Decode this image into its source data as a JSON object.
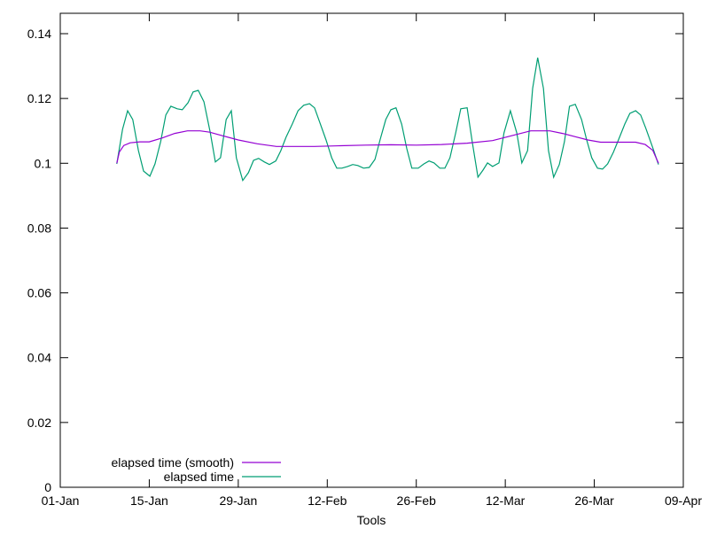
{
  "chart_data": {
    "type": "line",
    "title": "",
    "xlabel": "Tools",
    "ylabel": "",
    "x_units": "days since 01-Jan",
    "xlim": [
      0,
      98
    ],
    "ylim": [
      0,
      0.145
    ],
    "x_ticks": [
      {
        "day": 0,
        "label": "01-Jan"
      },
      {
        "day": 14,
        "label": "15-Jan"
      },
      {
        "day": 28,
        "label": "29-Jan"
      },
      {
        "day": 42,
        "label": "12-Feb"
      },
      {
        "day": 56,
        "label": "26-Feb"
      },
      {
        "day": 70,
        "label": "12-Mar"
      },
      {
        "day": 84,
        "label": "26-Mar"
      },
      {
        "day": 98,
        "label": "09-Apr"
      }
    ],
    "y_ticks": [
      {
        "value": 0,
        "label": "0"
      },
      {
        "value": 0.02,
        "label": "0.02"
      },
      {
        "value": 0.04,
        "label": "0.04"
      },
      {
        "value": 0.06,
        "label": "0.06"
      },
      {
        "value": 0.08,
        "label": "0.08"
      },
      {
        "value": 0.1,
        "label": "0.1"
      },
      {
        "value": 0.12,
        "label": "0.12"
      },
      {
        "value": 0.14,
        "label": "0.14"
      }
    ],
    "grid": false,
    "legend_position": "bottom-left",
    "series": [
      {
        "name": "elapsed time (smooth)",
        "color": "#9400d3",
        "x": [
          8.9,
          9.3,
          10.0,
          11.0,
          12.5,
          14.0,
          16.0,
          18.0,
          20.0,
          22.0,
          23.5,
          25.5,
          28.0,
          31.0,
          34.0,
          37.0,
          40.0,
          44.0,
          48.0,
          52.0,
          56.0,
          60.0,
          64.0,
          68.0,
          71.0,
          74.0,
          77.0,
          79.0,
          81.0,
          83.0,
          85.0,
          88.0,
          90.5,
          92.0,
          93.2,
          94.1
        ],
        "y": [
          0.1,
          0.1035,
          0.1055,
          0.1063,
          0.1066,
          0.1066,
          0.1078,
          0.1092,
          0.11,
          0.11,
          0.1096,
          0.1085,
          0.1072,
          0.106,
          0.1052,
          0.1052,
          0.1052,
          0.1054,
          0.1056,
          0.1057,
          0.1056,
          0.1058,
          0.1062,
          0.107,
          0.1085,
          0.11,
          0.11,
          0.1092,
          0.1082,
          0.1072,
          0.1065,
          0.1065,
          0.1065,
          0.1058,
          0.104,
          0.1
        ]
      },
      {
        "name": "elapsed time",
        "color": "#009e73",
        "x": [
          8.9,
          9.8,
          10.6,
          11.4,
          12.3,
          13.1,
          14.1,
          14.9,
          15.8,
          16.6,
          17.4,
          18.4,
          19.2,
          20.1,
          20.9,
          21.7,
          22.6,
          23.6,
          24.4,
          25.2,
          26.1,
          26.9,
          27.7,
          28.7,
          29.6,
          30.4,
          31.2,
          32.1,
          32.9,
          33.9,
          34.7,
          35.5,
          36.5,
          37.4,
          38.3,
          39.2,
          40.0,
          40.8,
          41.8,
          42.7,
          43.5,
          44.3,
          45.2,
          46.0,
          46.8,
          47.7,
          48.6,
          49.5,
          50.3,
          51.2,
          52.0,
          52.8,
          53.7,
          54.5,
          55.3,
          56.3,
          57.2,
          58.0,
          58.8,
          59.7,
          60.5,
          61.3,
          62.2,
          63.0,
          64.0,
          64.8,
          65.7,
          66.5,
          67.2,
          68.0,
          69.0,
          69.8,
          70.8,
          71.8,
          72.6,
          73.5,
          74.3,
          75.1,
          76.0,
          76.8,
          77.6,
          78.5,
          79.3,
          80.1,
          81.0,
          82.0,
          82.8,
          83.6,
          84.5,
          85.3,
          86.1,
          87.0,
          87.8,
          88.8,
          89.6,
          90.5,
          91.3,
          92.1,
          93.1,
          94.1
        ],
        "y": [
          0.0998,
          0.1105,
          0.1162,
          0.1135,
          0.1039,
          0.0976,
          0.096,
          0.0998,
          0.1067,
          0.1149,
          0.1176,
          0.1168,
          0.1165,
          0.1187,
          0.122,
          0.1225,
          0.119,
          0.1094,
          0.1004,
          0.1017,
          0.1135,
          0.1162,
          0.1017,
          0.0947,
          0.0971,
          0.1009,
          0.1015,
          0.1004,
          0.0996,
          0.1007,
          0.1039,
          0.108,
          0.1121,
          0.1162,
          0.1179,
          0.1184,
          0.1171,
          0.1127,
          0.1072,
          0.1017,
          0.0985,
          0.0985,
          0.099,
          0.0996,
          0.0993,
          0.0985,
          0.0987,
          0.1012,
          0.1072,
          0.1135,
          0.1165,
          0.1171,
          0.1121,
          0.1045,
          0.0985,
          0.0985,
          0.0998,
          0.1007,
          0.1001,
          0.0985,
          0.0985,
          0.1017,
          0.1094,
          0.1168,
          0.1171,
          0.1067,
          0.0957,
          0.0979,
          0.1001,
          0.099,
          0.1001,
          0.1094,
          0.1162,
          0.1094,
          0.1001,
          0.1039,
          0.1231,
          0.1326,
          0.1231,
          0.1039,
          0.0957,
          0.0996,
          0.1067,
          0.1176,
          0.1182,
          0.1135,
          0.1072,
          0.1017,
          0.0985,
          0.0982,
          0.0998,
          0.1034,
          0.1072,
          0.1121,
          0.1154,
          0.1162,
          0.1149,
          0.1108,
          0.1053,
          0.0996
        ]
      }
    ]
  }
}
